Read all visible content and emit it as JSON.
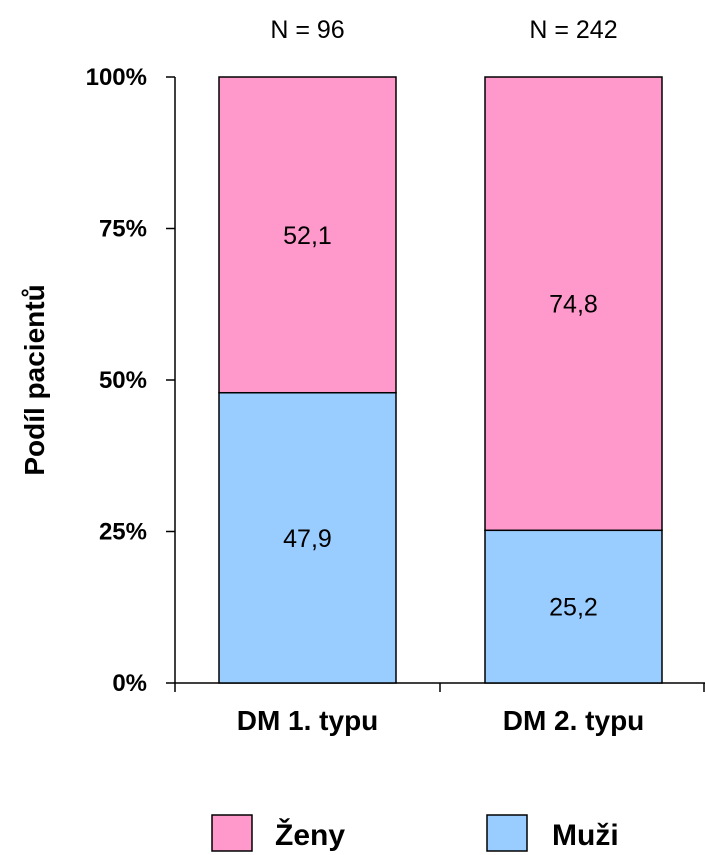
{
  "chart_data": {
    "type": "bar",
    "stacked": true,
    "categories": [
      "DM 1. typu",
      "DM 2. typu"
    ],
    "group_totals": [
      "N = 96",
      "N = 242"
    ],
    "series": [
      {
        "name": "Muži",
        "values": [
          47.9,
          25.2
        ],
        "labels": [
          "47,9",
          "25,2"
        ],
        "color": "#99ccff"
      },
      {
        "name": "Ženy",
        "values": [
          52.1,
          74.8
        ],
        "labels": [
          "52,1",
          "74,8"
        ],
        "color": "#ff99cc"
      }
    ],
    "legend_order": [
      "Ženy",
      "Muži"
    ],
    "ylabel": "Podíl pacientů",
    "yticks": [
      "0%",
      "25%",
      "50%",
      "75%",
      "100%"
    ],
    "ylim": [
      0,
      100
    ],
    "legend_position": "bottom",
    "grid": false
  }
}
